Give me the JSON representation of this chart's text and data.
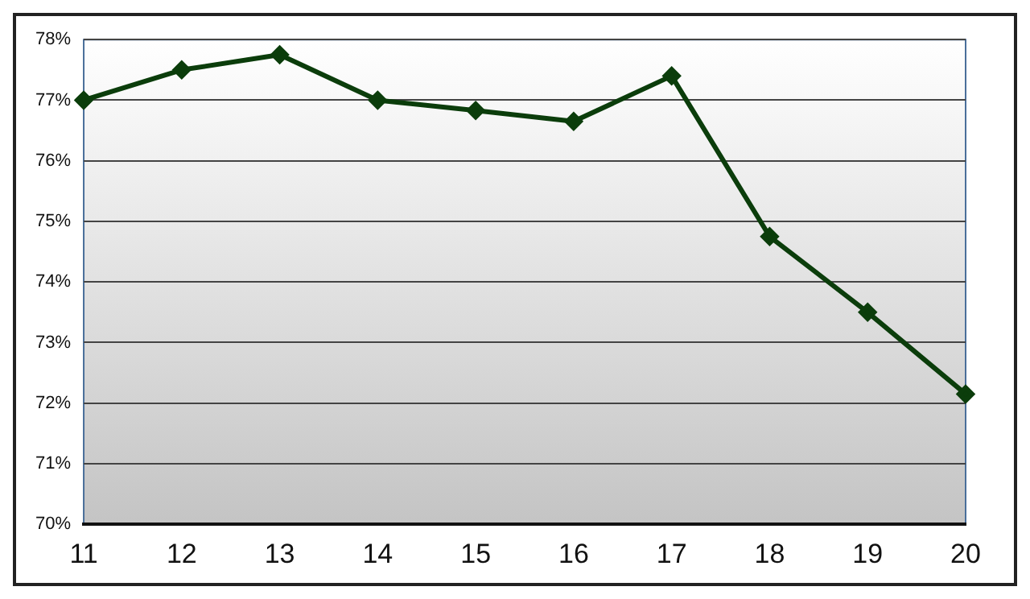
{
  "chart_data": {
    "type": "line",
    "categories": [
      "11",
      "12",
      "13",
      "14",
      "15",
      "16",
      "17",
      "18",
      "19",
      "20"
    ],
    "series": [
      {
        "color": "#0b3d0b",
        "values": [
          77.0,
          77.5,
          77.75,
          77.0,
          76.83,
          76.65,
          77.4,
          74.75,
          73.5,
          72.15
        ]
      }
    ],
    "ylim": [
      70,
      78
    ],
    "yticks": [
      {
        "value": 70,
        "label": "70%"
      },
      {
        "value": 71,
        "label": "71%"
      },
      {
        "value": 72,
        "label": "72%"
      },
      {
        "value": 73,
        "label": "73%"
      },
      {
        "value": 74,
        "label": "74%"
      },
      {
        "value": 75,
        "label": "75%"
      },
      {
        "value": 76,
        "label": "76%"
      },
      {
        "value": 77,
        "label": "77%"
      },
      {
        "value": 78,
        "label": "78%"
      }
    ],
    "grid": "y",
    "marker": "diamond",
    "line_style": "solid",
    "legend": false
  }
}
